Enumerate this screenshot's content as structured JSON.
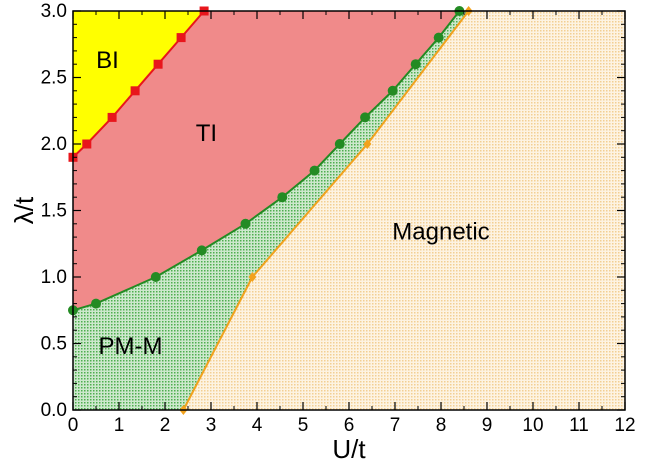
{
  "chart_data": {
    "type": "scatter",
    "xlabel": "U/t",
    "ylabel": "λ/t",
    "xlim": [
      0,
      12
    ],
    "ylim": [
      0,
      3.0
    ],
    "grid": false,
    "x_ticks": [
      "0",
      "1",
      "2",
      "3",
      "4",
      "5",
      "6",
      "7",
      "8",
      "9",
      "10",
      "11",
      "12"
    ],
    "y_ticks": [
      "0.0",
      "0.5",
      "1.0",
      "1.5",
      "2.0",
      "2.5",
      "3.0"
    ],
    "colors": {
      "red": "#e8161c",
      "green": "#238b23",
      "orange": "#f2a21d",
      "yellow": "#ffff00",
      "pink": "#f08a8a",
      "green_fill": "#5cb85c",
      "beige_fill": "#f7ddb0"
    },
    "regions": [
      {
        "label": "BI",
        "x": 0.75,
        "y": 2.62
      },
      {
        "label": "TI",
        "x": 2.9,
        "y": 2.07
      },
      {
        "label": "Magnetic",
        "x": 8.0,
        "y": 1.33
      },
      {
        "label": "PM-M",
        "x": 1.25,
        "y": 0.47
      }
    ],
    "series": [
      {
        "marker": "square",
        "color": "#e8161c",
        "x": [
          0.0,
          0.3,
          0.85,
          1.35,
          1.85,
          2.35,
          2.85
        ],
        "y": [
          1.9,
          2.0,
          2.2,
          2.4,
          2.6,
          2.8,
          3.0
        ]
      },
      {
        "marker": "circle",
        "color": "#238b23",
        "x": [
          0.0,
          0.5,
          1.8,
          2.8,
          3.75,
          4.55,
          5.25,
          5.8,
          6.35,
          6.95,
          7.45,
          7.95,
          8.4
        ],
        "y": [
          0.75,
          0.8,
          1.0,
          1.2,
          1.4,
          1.6,
          1.8,
          2.0,
          2.2,
          2.4,
          2.6,
          2.8,
          3.0
        ]
      },
      {
        "marker": "diamond",
        "color": "#f2a21d",
        "x": [
          2.4,
          3.9,
          6.4,
          8.6
        ],
        "y": [
          0.0,
          1.0,
          2.0,
          3.0
        ]
      }
    ]
  }
}
